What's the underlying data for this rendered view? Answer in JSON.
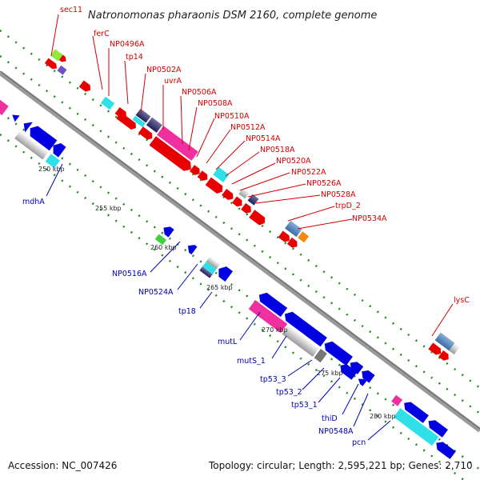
{
  "title": "Natronomonas pharaonis DSM 2160, complete genome",
  "accession": "Accession: NC_007426",
  "topology": "Topology: circular; Length: 2,595,221 bp; Genes: 2,710",
  "ticks": [
    "250 kbp",
    "255 kbp",
    "260 kbp",
    "265 kbp",
    "270 kbp",
    "275 kbp",
    "280 kbp"
  ],
  "labels_top": [
    "sec11",
    "ferC",
    "NP0496A",
    "tp14",
    "NP0502A",
    "uvrA",
    "NP0506A",
    "NP0508A",
    "NP0510A",
    "NP0512A",
    "NP0514A",
    "NP0518A",
    "NP0520A",
    "NP0522A",
    "NP0526A",
    "NP0528A",
    "trpD_2",
    "NP0534A",
    "lysC"
  ],
  "labels_bottom": [
    "mdhA",
    "NP0516A",
    "NP0524A",
    "tp18",
    "mutL",
    "mutS_1",
    "tp53_3",
    "tp53_2",
    "tp53_1",
    "thiD",
    "NP0548A",
    "pcn"
  ],
  "colors": {
    "forward_gene": "#e80000",
    "reverse_gene": "#0000e0",
    "label_forward": "#d40000",
    "label_reverse": "#0000b0",
    "backbone": "#888888",
    "dots": "#208a20"
  }
}
